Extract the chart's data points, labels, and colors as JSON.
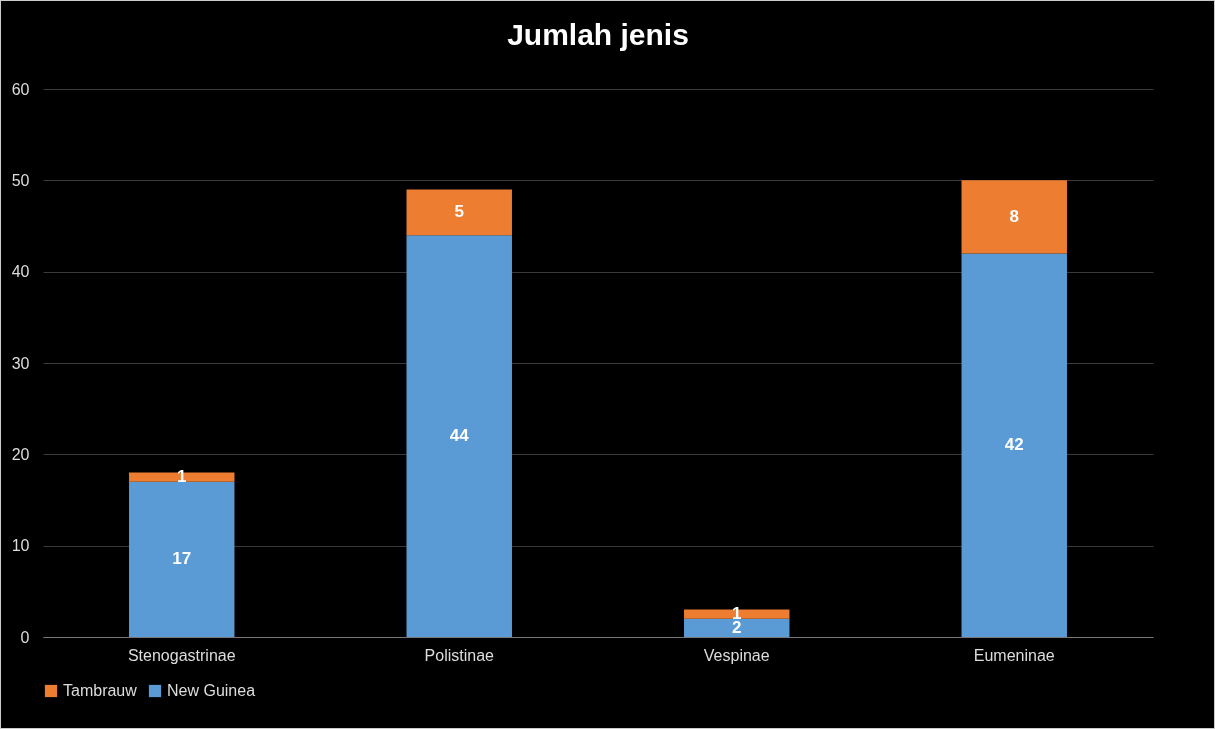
{
  "chart_data": {
    "type": "bar",
    "title": "Jumlah jenis",
    "categories": [
      "Stenogastrinae",
      "Polistinae",
      "Vespinae",
      "Eumeninae"
    ],
    "stacked": true,
    "series": [
      {
        "name": "New Guinea",
        "color": "#5b9bd5",
        "values": [
          17,
          44,
          2,
          42
        ]
      },
      {
        "name": "Tambrauw",
        "color": "#ed7d31",
        "values": [
          1,
          5,
          1,
          8
        ]
      }
    ],
    "ylim": [
      0,
      60
    ],
    "yticks": [
      0,
      10,
      20,
      30,
      40,
      50,
      60
    ],
    "grid": "y",
    "legend": "bottom",
    "data_labels": true
  }
}
